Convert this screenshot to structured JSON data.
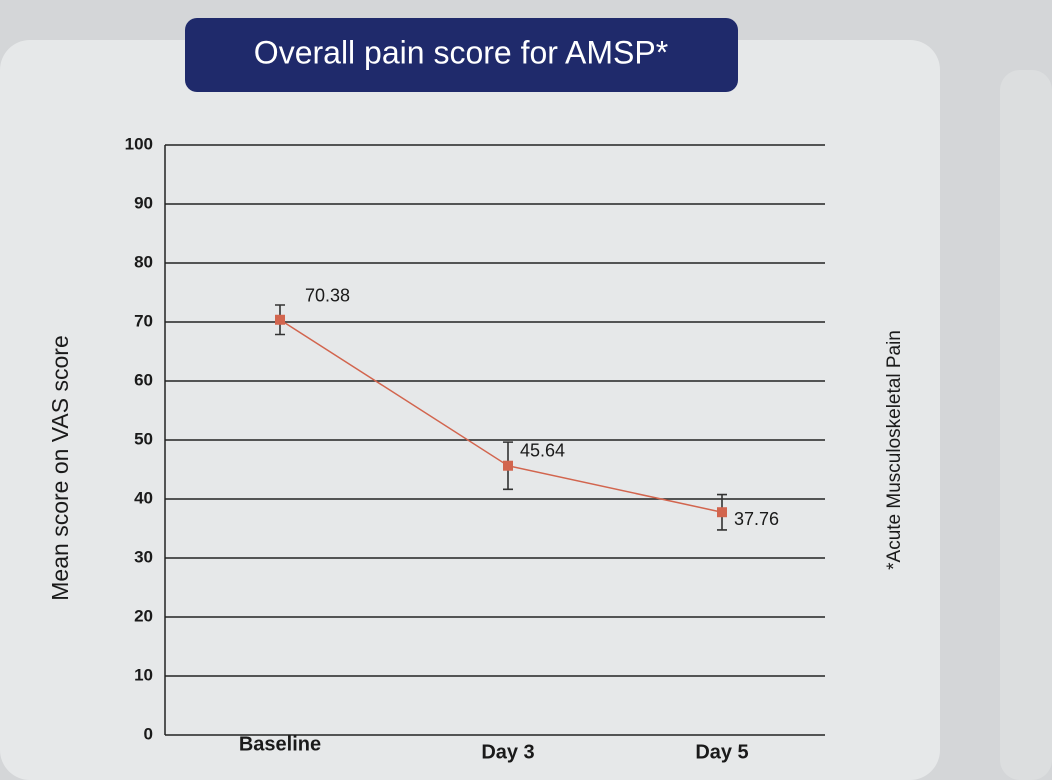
{
  "chart_data": {
    "type": "line",
    "title": "Overall pain score for AMSP*",
    "y_label": "Mean score on VAS score",
    "annotation": "*Acute Musculoskeletal Pain",
    "categories": [
      "Baseline",
      "Day 3",
      "Day 5"
    ],
    "series": [
      {
        "name": "Overall pain score",
        "color": "#d2654e",
        "values": [
          70.38,
          45.64,
          37.76
        ],
        "errors": [
          2.5,
          4,
          3
        ]
      }
    ],
    "ylim": [
      0,
      100
    ],
    "yticks": [
      0,
      10,
      20,
      30,
      40,
      50,
      60,
      70,
      80,
      90,
      100
    ],
    "grid": true
  }
}
